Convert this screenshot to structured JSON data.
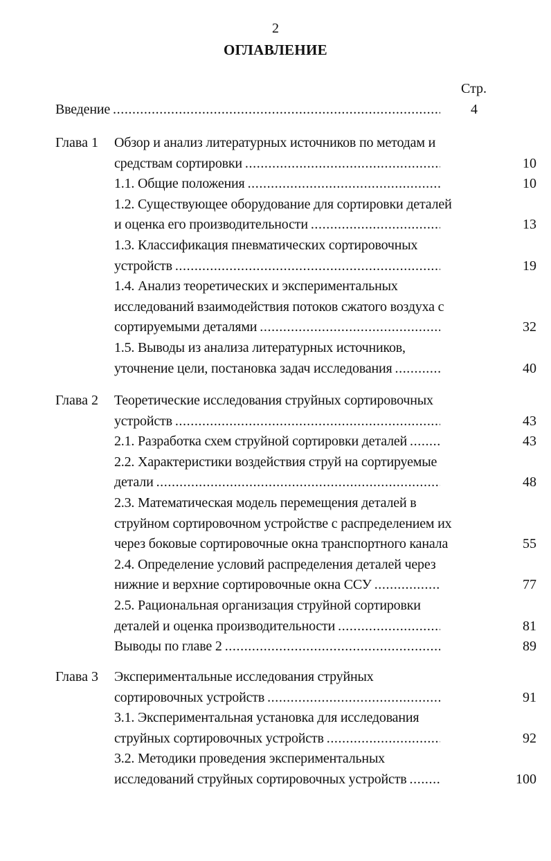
{
  "page_number": "2",
  "title": "ОГЛАВЛЕНИЕ",
  "page_column_header": "Стр.",
  "intro": {
    "lines": [
      "Введение"
    ],
    "page": "4"
  },
  "chapters": [
    {
      "label": "Глава 1",
      "entries": [
        {
          "lines": [
            "Обзор и анализ литературных источников по методам и",
            "средствам сортировки"
          ],
          "page": "10"
        },
        {
          "lines": [
            "1.1. Общие положения"
          ],
          "page": "10"
        },
        {
          "lines": [
            "1.2. Существующее оборудование для сортировки деталей",
            "и оценка его производительности"
          ],
          "page": "13"
        },
        {
          "lines": [
            "1.3. Классификация пневматических сортировочных",
            "устройств"
          ],
          "page": "19"
        },
        {
          "lines": [
            "1.4. Анализ теоретических и экспериментальных",
            "исследований взаимодействия потоков сжатого воздуха с",
            "сортируемыми деталями"
          ],
          "page": "32"
        },
        {
          "lines": [
            "1.5. Выводы из анализа литературных источников,",
            "уточнение цели, постановка задач исследования"
          ],
          "page": "40"
        }
      ]
    },
    {
      "label": "Глава 2",
      "entries": [
        {
          "lines": [
            "Теоретические исследования струйных сортировочных",
            "устройств"
          ],
          "page": "43"
        },
        {
          "lines": [
            "2.1. Разработка схем струйной сортировки деталей"
          ],
          "page": "43"
        },
        {
          "lines": [
            "2.2. Характеристики воздействия струй на сортируемые",
            "детали"
          ],
          "page": "48"
        },
        {
          "lines": [
            "2.3. Математическая модель перемещения деталей в",
            "струйном сортировочном устройстве с распределением их",
            "через боковые сортировочные окна транспортного канала"
          ],
          "page": "55"
        },
        {
          "lines": [
            "2.4. Определение условий распределения деталей через",
            "нижние и верхние сортировочные окна ССУ"
          ],
          "page": "77"
        },
        {
          "lines": [
            "2.5. Рациональная организация струйной сортировки",
            "деталей и оценка производительности"
          ],
          "page": "81"
        },
        {
          "lines": [
            "Выводы по главе 2"
          ],
          "page": "89"
        }
      ]
    },
    {
      "label": "Глава 3",
      "entries": [
        {
          "lines": [
            "Экспериментальные исследования струйных",
            "сортировочных устройств"
          ],
          "page": "91"
        },
        {
          "lines": [
            "3.1. Экспериментальная установка для исследования",
            "струйных сортировочных устройств"
          ],
          "page": "92"
        },
        {
          "lines": [
            "3.2. Методики проведения экспериментальных",
            "исследований струйных сортировочных устройств"
          ],
          "page": "100"
        }
      ]
    }
  ]
}
